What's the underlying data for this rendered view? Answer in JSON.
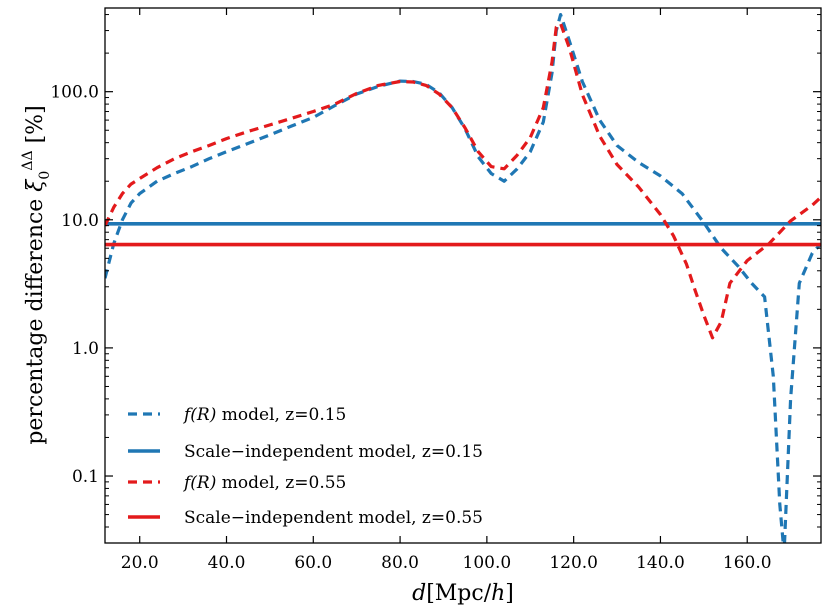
{
  "chart_data": {
    "type": "line",
    "yscale": "log",
    "xlabel": "d[Mpc/h]",
    "ylabel": "percentage difference ξ₀^ΔΔ [%]",
    "xlim": [
      12,
      177
    ],
    "ylim": [
      0.03,
      450
    ],
    "xticks": [
      20,
      40,
      60,
      80,
      100,
      120,
      140,
      160
    ],
    "xtick_labels": [
      "20.0",
      "40.0",
      "60.0",
      "80.0",
      "100.0",
      "120.0",
      "140.0",
      "160.0"
    ],
    "yticks": [
      0.1,
      1,
      10,
      100
    ],
    "ytick_labels": [
      "0.1",
      "1.0",
      "10.0",
      "100.0"
    ],
    "legend_position": "lower-left",
    "colors": {
      "blue": "#1f77b4",
      "red": "#e31a1c"
    },
    "series": [
      {
        "name": "f(R) model, z=0.15",
        "label_func": "f(R)",
        "label_rest": "model, z=0.15",
        "color": "#1f77b4",
        "style": "dashed",
        "x": [
          12,
          14,
          16,
          18,
          20,
          24,
          28,
          32,
          36,
          40,
          45,
          50,
          55,
          60,
          65,
          70,
          75,
          80,
          83,
          86,
          89,
          92,
          95,
          98,
          101,
          104,
          107,
          110,
          113,
          115,
          116,
          117,
          119,
          122,
          126,
          130,
          135,
          140,
          145,
          150,
          154,
          158,
          161,
          164,
          166,
          167.5,
          168.5,
          170,
          172,
          175,
          177
        ],
        "y": [
          3.5,
          6.5,
          10,
          13.5,
          16,
          20,
          23,
          26,
          30,
          34,
          39.5,
          46,
          54,
          63,
          78,
          96,
          110,
          121,
          120,
          114,
          98,
          75,
          51,
          31,
          23,
          20,
          25,
          34,
          58,
          140,
          300,
          400,
          250,
          120,
          60,
          38,
          28,
          22,
          16,
          9.5,
          6,
          4.3,
          3.2,
          2.5,
          0.6,
          0.06,
          0.025,
          0.4,
          3.2,
          5.5,
          6.5
        ]
      },
      {
        "name": "Scale-independent model, z=0.15",
        "label_func": "",
        "label_rest": "Scale−independent model, z=0.15",
        "color": "#1f77b4",
        "style": "solid",
        "x": [
          12,
          177
        ],
        "y": [
          9.3,
          9.3
        ]
      },
      {
        "name": "f(R) model, z=0.55",
        "label_func": "f(R)",
        "label_rest": "model, z=0.55",
        "color": "#e31a1c",
        "style": "dashed",
        "x": [
          12,
          14,
          16,
          18,
          20,
          24,
          28,
          32,
          36,
          40,
          45,
          50,
          55,
          60,
          65,
          70,
          75,
          80,
          83,
          86,
          89,
          92,
          95,
          98,
          101,
          104,
          107,
          110,
          113,
          115,
          116,
          117,
          119,
          122,
          126,
          130,
          135,
          140,
          143,
          146,
          148,
          150,
          152,
          154,
          156,
          160,
          165,
          170,
          175,
          177
        ],
        "y": [
          9,
          12.5,
          16,
          19,
          21,
          25.5,
          30,
          34,
          38,
          43,
          49,
          55,
          62,
          70,
          80,
          97,
          112,
          120,
          119,
          112,
          96,
          75,
          52,
          34,
          26,
          25,
          32,
          44,
          75,
          170,
          320,
          340,
          220,
          95,
          45,
          27,
          18,
          11,
          7.5,
          4.5,
          2.8,
          1.8,
          1.2,
          1.6,
          3.2,
          4.8,
          6.5,
          9.8,
          13,
          15
        ]
      },
      {
        "name": "Scale-independent model, z=0.55",
        "label_func": "",
        "label_rest": "Scale−independent model, z=0.55",
        "color": "#e31a1c",
        "style": "solid",
        "x": [
          12,
          177
        ],
        "y": [
          6.4,
          6.4
        ]
      }
    ]
  }
}
